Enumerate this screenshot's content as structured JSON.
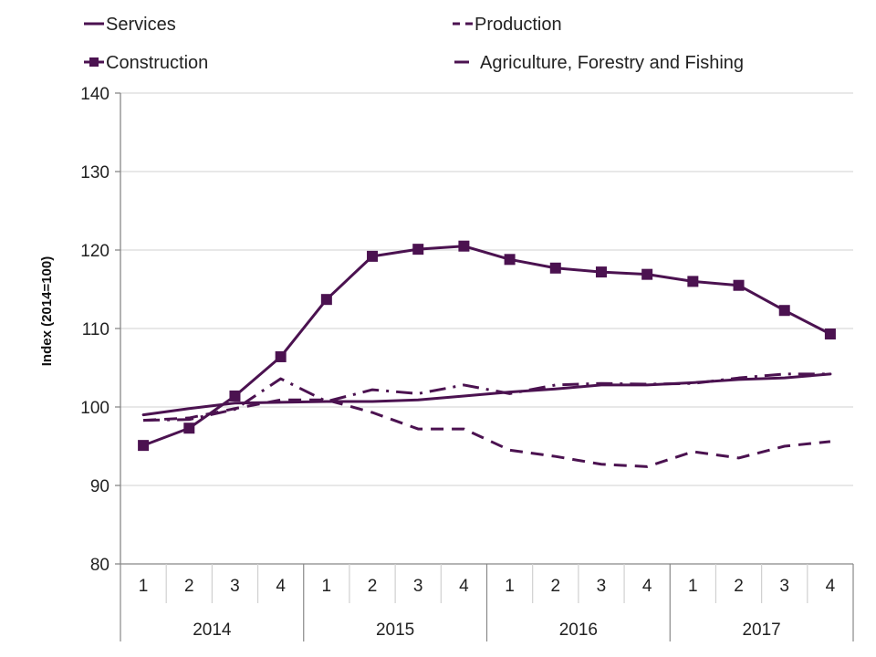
{
  "chart_data": {
    "type": "line",
    "title": "",
    "xlabel": "",
    "ylabel": "Index (2014=100)",
    "ylim": [
      80,
      140
    ],
    "yticks": [
      80,
      90,
      100,
      110,
      120,
      130,
      140
    ],
    "grid": true,
    "legend_position": "top",
    "x_quarters": [
      "1",
      "2",
      "3",
      "4",
      "1",
      "2",
      "3",
      "4",
      "1",
      "2",
      "3",
      "4",
      "1",
      "2",
      "3",
      "4"
    ],
    "x_years": [
      "2014",
      "2015",
      "2016",
      "2017"
    ],
    "color": "#4B1250",
    "series": [
      {
        "name": "Services",
        "style": "solid",
        "marker": "none",
        "values": [
          99.0,
          99.8,
          100.5,
          100.6,
          100.7,
          100.7,
          100.9,
          101.4,
          101.9,
          102.3,
          102.8,
          102.8,
          103.1,
          103.5,
          103.7,
          104.2
        ]
      },
      {
        "name": "Production",
        "style": "dashed",
        "marker": "none",
        "values": [
          98.3,
          98.6,
          99.8,
          100.9,
          100.9,
          99.3,
          97.2,
          97.2,
          94.5,
          93.7,
          92.7,
          92.4,
          94.3,
          93.5,
          95.0,
          95.6
        ]
      },
      {
        "name": "Construction",
        "style": "solid",
        "marker": "square",
        "values": [
          95.1,
          97.3,
          101.4,
          106.4,
          113.7,
          119.2,
          120.1,
          120.5,
          118.8,
          117.7,
          117.2,
          116.9,
          116.0,
          115.5,
          112.3,
          109.3
        ]
      },
      {
        "name": "Agriculture, Forestry and Fishing",
        "style": "dashdot",
        "marker": "none",
        "values": [
          98.3,
          98.4,
          99.7,
          103.6,
          100.7,
          102.2,
          101.7,
          102.8,
          101.7,
          102.8,
          103.0,
          102.9,
          103.0,
          103.7,
          104.2,
          104.2
        ]
      }
    ]
  }
}
